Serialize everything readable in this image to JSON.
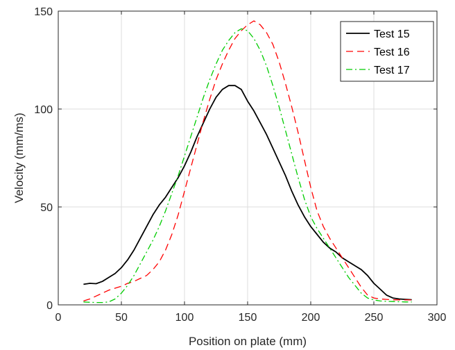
{
  "chart_data": {
    "type": "line",
    "xlabel": "Position on plate (mm)",
    "ylabel": "Velocity (mm/ms)",
    "xlim": [
      0,
      300
    ],
    "ylim": [
      0,
      150
    ],
    "xticks": [
      0,
      50,
      100,
      150,
      200,
      250,
      300
    ],
    "yticks": [
      0,
      50,
      100,
      150
    ],
    "grid": true,
    "legend_position": "top-right",
    "series": [
      {
        "name": "Test 15",
        "color": "#000000",
        "style": "solid",
        "points": [
          [
            20,
            10.5
          ],
          [
            25,
            11
          ],
          [
            30,
            10.8
          ],
          [
            35,
            12
          ],
          [
            40,
            14
          ],
          [
            45,
            16
          ],
          [
            50,
            19
          ],
          [
            55,
            23
          ],
          [
            60,
            28
          ],
          [
            65,
            34
          ],
          [
            70,
            40
          ],
          [
            75,
            46
          ],
          [
            80,
            51
          ],
          [
            85,
            55
          ],
          [
            90,
            60
          ],
          [
            95,
            65
          ],
          [
            100,
            71
          ],
          [
            105,
            78
          ],
          [
            110,
            86
          ],
          [
            115,
            93
          ],
          [
            120,
            100
          ],
          [
            125,
            106
          ],
          [
            130,
            110
          ],
          [
            135,
            112
          ],
          [
            140,
            112
          ],
          [
            145,
            110
          ],
          [
            150,
            104
          ],
          [
            155,
            99
          ],
          [
            160,
            93
          ],
          [
            165,
            87
          ],
          [
            170,
            80
          ],
          [
            175,
            73
          ],
          [
            180,
            66
          ],
          [
            185,
            58
          ],
          [
            190,
            51
          ],
          [
            195,
            45
          ],
          [
            200,
            40
          ],
          [
            205,
            36
          ],
          [
            210,
            32
          ],
          [
            215,
            29
          ],
          [
            220,
            27
          ],
          [
            225,
            24
          ],
          [
            230,
            22
          ],
          [
            235,
            20
          ],
          [
            240,
            18
          ],
          [
            245,
            15
          ],
          [
            250,
            11
          ],
          [
            255,
            8
          ],
          [
            260,
            5
          ],
          [
            265,
            3.5
          ],
          [
            270,
            3
          ],
          [
            275,
            2.8
          ],
          [
            280,
            2.6
          ]
        ]
      },
      {
        "name": "Test 16",
        "color": "#ff0000",
        "style": "dashed",
        "points": [
          [
            20,
            2
          ],
          [
            25,
            3
          ],
          [
            30,
            4.5
          ],
          [
            35,
            6
          ],
          [
            40,
            7.5
          ],
          [
            45,
            8.5
          ],
          [
            50,
            9.5
          ],
          [
            55,
            11
          ],
          [
            60,
            12
          ],
          [
            65,
            13.5
          ],
          [
            70,
            15
          ],
          [
            75,
            18
          ],
          [
            80,
            22
          ],
          [
            85,
            28
          ],
          [
            90,
            36
          ],
          [
            95,
            46
          ],
          [
            100,
            58
          ],
          [
            105,
            70
          ],
          [
            110,
            82
          ],
          [
            115,
            94
          ],
          [
            120,
            105
          ],
          [
            125,
            115
          ],
          [
            130,
            123
          ],
          [
            135,
            130
          ],
          [
            140,
            136
          ],
          [
            145,
            140
          ],
          [
            150,
            143
          ],
          [
            155,
            145
          ],
          [
            160,
            143
          ],
          [
            165,
            139
          ],
          [
            170,
            133
          ],
          [
            175,
            124
          ],
          [
            180,
            113
          ],
          [
            185,
            101
          ],
          [
            190,
            88
          ],
          [
            195,
            74
          ],
          [
            200,
            60
          ],
          [
            205,
            48
          ],
          [
            210,
            40
          ],
          [
            215,
            34
          ],
          [
            220,
            29
          ],
          [
            225,
            24
          ],
          [
            230,
            19
          ],
          [
            235,
            14
          ],
          [
            240,
            9
          ],
          [
            245,
            5
          ],
          [
            250,
            3.5
          ],
          [
            255,
            3
          ],
          [
            260,
            2.8
          ],
          [
            265,
            2.6
          ],
          [
            270,
            2.5
          ],
          [
            275,
            2.5
          ],
          [
            280,
            2.5
          ]
        ]
      },
      {
        "name": "Test 17",
        "color": "#00cc00",
        "style": "dashdot",
        "points": [
          [
            20,
            1.5
          ],
          [
            25,
            1.3
          ],
          [
            30,
            1.2
          ],
          [
            35,
            1.2
          ],
          [
            40,
            1.5
          ],
          [
            45,
            3
          ],
          [
            50,
            6
          ],
          [
            55,
            10
          ],
          [
            60,
            15
          ],
          [
            65,
            21
          ],
          [
            70,
            27
          ],
          [
            75,
            33
          ],
          [
            80,
            40
          ],
          [
            85,
            48
          ],
          [
            90,
            57
          ],
          [
            95,
            66
          ],
          [
            100,
            76
          ],
          [
            105,
            86
          ],
          [
            110,
            96
          ],
          [
            115,
            106
          ],
          [
            120,
            115
          ],
          [
            125,
            123
          ],
          [
            130,
            130
          ],
          [
            135,
            135
          ],
          [
            140,
            139
          ],
          [
            145,
            141
          ],
          [
            150,
            140
          ],
          [
            155,
            136
          ],
          [
            160,
            130
          ],
          [
            165,
            122
          ],
          [
            170,
            112
          ],
          [
            175,
            101
          ],
          [
            180,
            89
          ],
          [
            185,
            77
          ],
          [
            190,
            65
          ],
          [
            195,
            54
          ],
          [
            200,
            45
          ],
          [
            205,
            39
          ],
          [
            210,
            34
          ],
          [
            215,
            29
          ],
          [
            220,
            24
          ],
          [
            225,
            19
          ],
          [
            230,
            14
          ],
          [
            235,
            10
          ],
          [
            240,
            6
          ],
          [
            245,
            3.5
          ],
          [
            250,
            2.5
          ],
          [
            255,
            2
          ],
          [
            260,
            1.8
          ],
          [
            265,
            1.7
          ],
          [
            270,
            1.6
          ],
          [
            275,
            1.5
          ],
          [
            280,
            1.5
          ]
        ]
      }
    ]
  }
}
